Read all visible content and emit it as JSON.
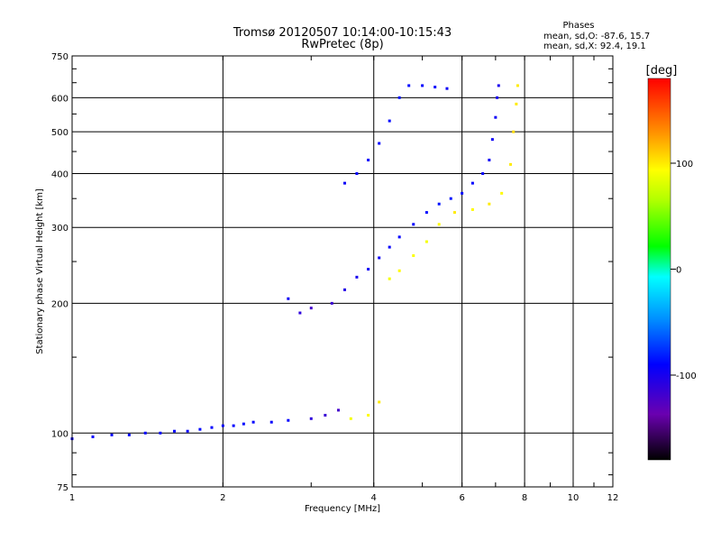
{
  "chart_data": {
    "type": "scatter",
    "title": "Tromsø 20120507 10:14:00-10:15:43",
    "subtitle": "RwPretec (8p)",
    "xlabel": "Frequency [MHz]",
    "ylabel": "Stationary phase Virtual Height [km]",
    "x_scale": "log",
    "y_scale": "log",
    "xlim": [
      1,
      12
    ],
    "ylim": [
      75,
      750
    ],
    "x_ticks": [
      "1",
      "2",
      "4",
      "6",
      "8",
      "10",
      "12"
    ],
    "y_ticks": [
      "75",
      "100",
      "200",
      "300",
      "400",
      "500",
      "600",
      "750"
    ],
    "grid": true,
    "phases_box": {
      "heading": "Phases",
      "line1": "mean, sd,O: -87.6, 15.7",
      "line2": "mean, sd,X:  92.4, 19.1"
    },
    "colorbar": {
      "label": "[deg]",
      "range": [
        -180,
        180
      ],
      "ticks": [
        "100",
        "0",
        "-100"
      ]
    },
    "series": [
      {
        "points": [
          [
            1.0,
            97,
            -95
          ],
          [
            1.1,
            98,
            -92
          ],
          [
            1.2,
            99,
            -90
          ],
          [
            1.3,
            99,
            -88
          ],
          [
            1.4,
            100,
            -90
          ],
          [
            1.5,
            100,
            -88
          ],
          [
            1.6,
            101,
            -90
          ],
          [
            1.7,
            101,
            -92
          ],
          [
            1.8,
            102,
            -88
          ],
          [
            1.9,
            103,
            -90
          ],
          [
            2.0,
            104,
            -92
          ],
          [
            2.1,
            104,
            -90
          ],
          [
            2.2,
            105,
            -88
          ],
          [
            2.3,
            106,
            -90
          ],
          [
            2.5,
            106,
            -92
          ],
          [
            2.7,
            107,
            -90
          ],
          [
            3.0,
            108,
            -110
          ],
          [
            3.2,
            110,
            -115
          ],
          [
            3.4,
            113,
            -120
          ],
          [
            2.7,
            205,
            -95
          ],
          [
            2.85,
            190,
            -110
          ],
          [
            3.0,
            195,
            -120
          ],
          [
            3.3,
            200,
            -115
          ],
          [
            3.5,
            215,
            -105
          ],
          [
            3.7,
            230,
            -100
          ],
          [
            3.9,
            240,
            -95
          ],
          [
            4.1,
            255,
            -95
          ],
          [
            4.3,
            270,
            -92
          ],
          [
            4.5,
            285,
            -90
          ],
          [
            4.8,
            305,
            -90
          ],
          [
            5.1,
            325,
            -88
          ],
          [
            5.4,
            340,
            -85
          ],
          [
            5.7,
            350,
            -85
          ],
          [
            6.0,
            360,
            -88
          ],
          [
            6.3,
            380,
            -90
          ],
          [
            6.6,
            400,
            -92
          ],
          [
            6.8,
            430,
            -95
          ],
          [
            6.9,
            480,
            -95
          ],
          [
            7.0,
            540,
            -95
          ],
          [
            7.05,
            600,
            -100
          ],
          [
            7.1,
            640,
            -100
          ],
          [
            3.5,
            380,
            -95
          ],
          [
            3.7,
            400,
            -90
          ],
          [
            3.9,
            430,
            -92
          ],
          [
            4.1,
            470,
            -90
          ],
          [
            4.3,
            530,
            -88
          ],
          [
            4.5,
            600,
            -85
          ],
          [
            4.7,
            640,
            -88
          ],
          [
            5.0,
            640,
            -90
          ],
          [
            5.3,
            635,
            -92
          ],
          [
            5.6,
            630,
            -95
          ]
        ]
      },
      {
        "points": [
          [
            3.6,
            108,
            90
          ],
          [
            3.9,
            110,
            95
          ],
          [
            4.1,
            118,
            100
          ],
          [
            4.3,
            228,
            90
          ],
          [
            4.5,
            238,
            95
          ],
          [
            4.8,
            258,
            92
          ],
          [
            5.1,
            278,
            90
          ],
          [
            5.4,
            305,
            95
          ],
          [
            5.8,
            325,
            100
          ],
          [
            6.3,
            330,
            95
          ],
          [
            6.8,
            340,
            100
          ],
          [
            7.2,
            360,
            95
          ],
          [
            7.5,
            420,
            100
          ],
          [
            7.6,
            500,
            105
          ],
          [
            7.7,
            580,
            100
          ],
          [
            7.75,
            640,
            100
          ]
        ]
      }
    ]
  }
}
